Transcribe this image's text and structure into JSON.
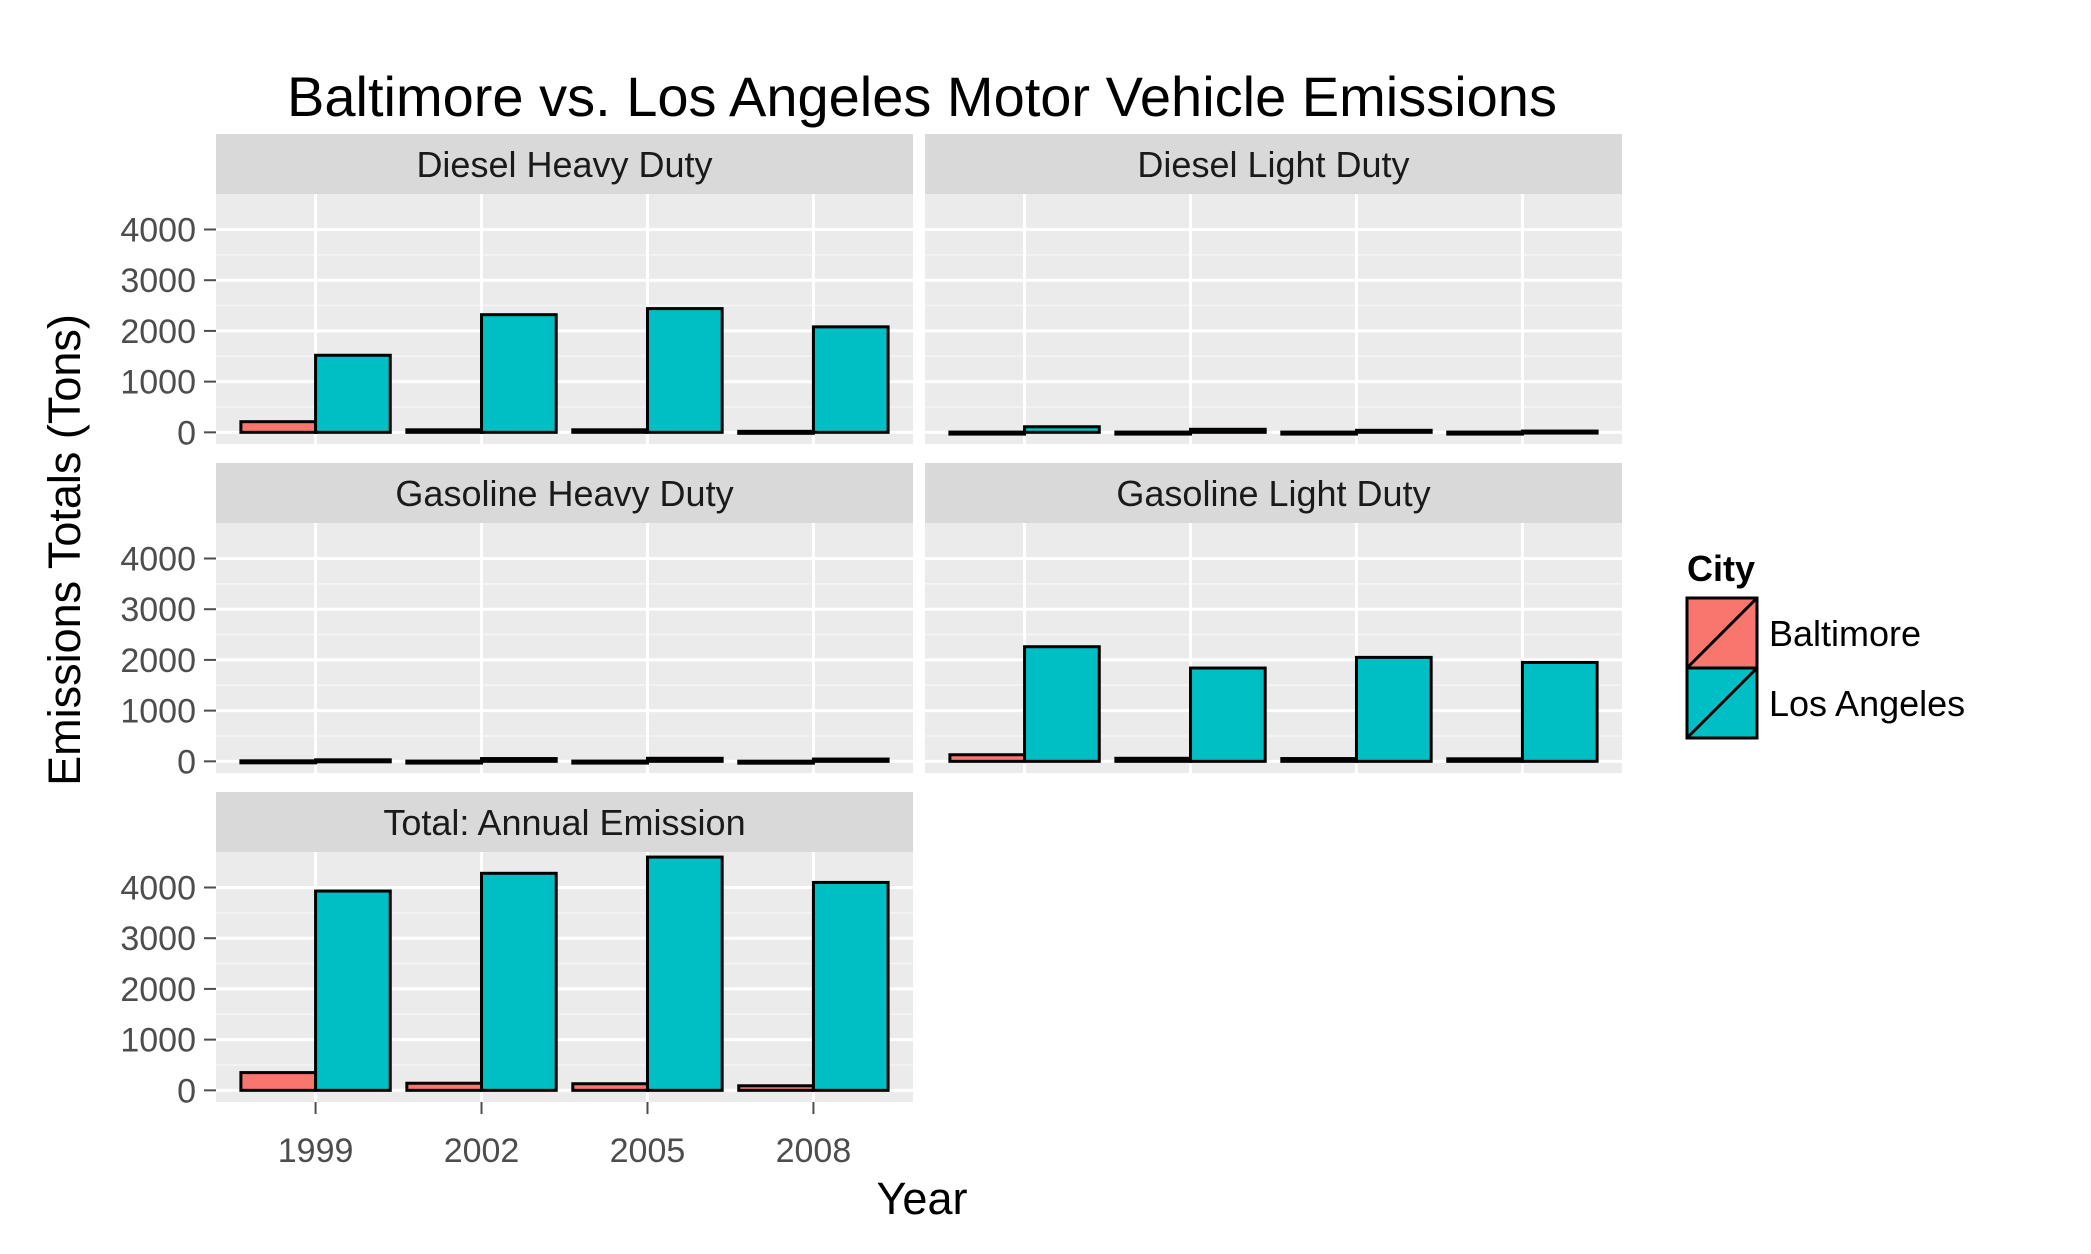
{
  "chart_data": {
    "type": "bar",
    "title": "Baltimore vs. Los Angeles Motor Vehicle Emissions",
    "xlabel": "Year",
    "ylabel": "Emissions Totals (Tons)",
    "categories": [
      "1999",
      "2002",
      "2005",
      "2008"
    ],
    "yticks": [
      "0",
      "1000",
      "2000",
      "3000",
      "4000"
    ],
    "ylim": [
      -230,
      4700
    ],
    "grid": true,
    "legend": {
      "title": "City",
      "placement": "right",
      "entries": [
        {
          "name": "Baltimore",
          "color": "#F8766D"
        },
        {
          "name": "Los Angeles",
          "color": "#00BFC4"
        }
      ]
    },
    "panels": [
      {
        "label": "Diesel Heavy Duty",
        "series": [
          {
            "name": "Baltimore",
            "values": [
              210,
              50,
              50,
              20
            ]
          },
          {
            "name": "Los Angeles",
            "values": [
              1520,
              2320,
              2440,
              2080
            ]
          }
        ]
      },
      {
        "label": "Diesel Light Duty",
        "series": [
          {
            "name": "Baltimore",
            "values": [
              5,
              5,
              5,
              5
            ]
          },
          {
            "name": "Los Angeles",
            "values": [
              110,
              60,
              40,
              25
            ]
          }
        ]
      },
      {
        "label": "Gasoline Heavy Duty",
        "series": [
          {
            "name": "Baltimore",
            "values": [
              10,
              5,
              5,
              3
            ]
          },
          {
            "name": "Los Angeles",
            "values": [
              30,
              55,
              60,
              45
            ]
          }
        ]
      },
      {
        "label": "Gasoline Light Duty",
        "series": [
          {
            "name": "Baltimore",
            "values": [
              130,
              60,
              55,
              50
            ]
          },
          {
            "name": "Los Angeles",
            "values": [
              2260,
              1840,
              2050,
              1950
            ]
          }
        ]
      },
      {
        "label": "Total: Annual Emission",
        "series": [
          {
            "name": "Baltimore",
            "values": [
              350,
              140,
              130,
              90
            ]
          },
          {
            "name": "Los Angeles",
            "values": [
              3930,
              4280,
              4600,
              4100
            ]
          }
        ]
      }
    ]
  }
}
